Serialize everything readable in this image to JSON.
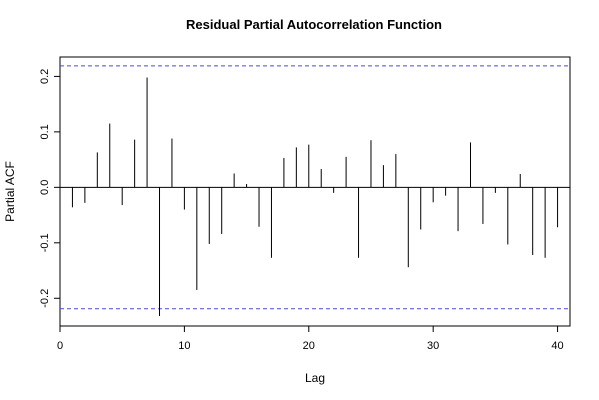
{
  "chart_data": {
    "type": "bar",
    "title": "Residual Partial Autocorrelation Function",
    "xlabel": "Lag",
    "ylabel": "Partial ACF",
    "xlim": [
      0,
      41
    ],
    "ylim": [
      -0.25,
      0.235
    ],
    "x_ticks": [
      0,
      10,
      20,
      30,
      40
    ],
    "y_ticks": [
      -0.2,
      -0.1,
      0.0,
      0.1,
      0.2
    ],
    "x_tick_labels": [
      "0",
      "10",
      "20",
      "30",
      "40"
    ],
    "y_tick_labels": [
      "-0.2",
      "-0.1",
      "0.0",
      "0.1",
      "0.2"
    ],
    "confidence_bounds": [
      0.219,
      -0.219
    ],
    "confidence_color": "#4b4bdc",
    "grid": false,
    "lags": [
      1,
      2,
      3,
      4,
      5,
      6,
      7,
      8,
      9,
      10,
      11,
      12,
      13,
      14,
      15,
      16,
      17,
      18,
      19,
      20,
      21,
      22,
      23,
      24,
      25,
      26,
      27,
      28,
      29,
      30,
      31,
      32,
      33,
      34,
      35,
      36,
      37,
      38,
      39,
      40
    ],
    "values": [
      -0.036,
      -0.028,
      0.063,
      0.115,
      -0.032,
      0.086,
      0.198,
      -0.232,
      0.088,
      -0.04,
      -0.185,
      -0.102,
      -0.084,
      0.025,
      0.006,
      -0.071,
      -0.127,
      0.053,
      0.072,
      0.077,
      0.033,
      -0.01,
      0.055,
      -0.127,
      0.085,
      0.04,
      0.06,
      -0.144,
      -0.076,
      -0.027,
      -0.015,
      -0.079,
      0.081,
      -0.066,
      -0.01,
      -0.103,
      0.024,
      -0.122,
      -0.127,
      -0.072
    ]
  }
}
